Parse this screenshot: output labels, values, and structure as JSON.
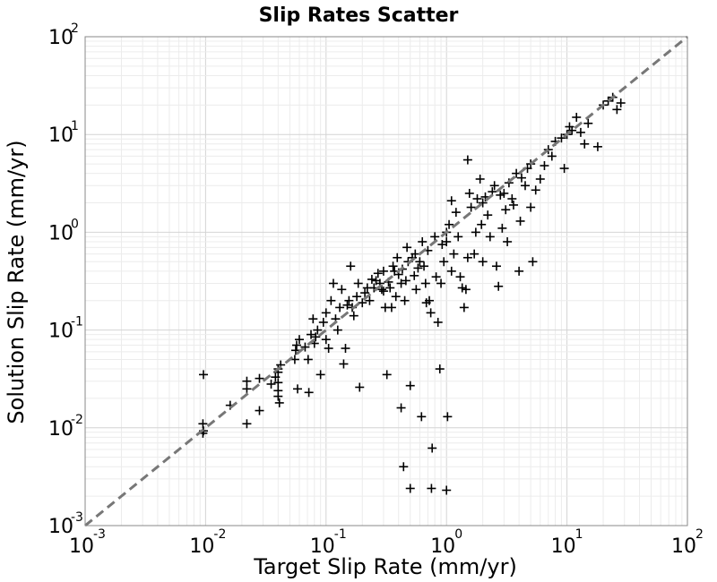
{
  "chart_data": {
    "type": "scatter",
    "title": "Slip Rates Scatter",
    "xlabel": "Target Slip Rate (mm/yr)",
    "ylabel": "Solution Slip Rate (mm/yr)",
    "xscale": "log",
    "yscale": "log",
    "xlim": [
      0.001,
      100
    ],
    "ylim": [
      0.001,
      100
    ],
    "grid": true,
    "marker": "plus",
    "reference_line": "y = x (dashed gray)",
    "x_ticks": [
      {
        "base": "10",
        "exp": "-3"
      },
      {
        "base": "10",
        "exp": "-2"
      },
      {
        "base": "10",
        "exp": "-1"
      },
      {
        "base": "10",
        "exp": "0"
      },
      {
        "base": "10",
        "exp": "1"
      },
      {
        "base": "10",
        "exp": "2"
      }
    ],
    "y_ticks": [
      {
        "base": "10",
        "exp": "-3"
      },
      {
        "base": "10",
        "exp": "-2"
      },
      {
        "base": "10",
        "exp": "-1"
      },
      {
        "base": "10",
        "exp": "0"
      },
      {
        "base": "10",
        "exp": "1"
      },
      {
        "base": "10",
        "exp": "2"
      }
    ],
    "points": [
      [
        0.0096,
        0.035
      ],
      [
        0.0095,
        0.011
      ],
      [
        0.0095,
        0.0088
      ],
      [
        0.0096,
        0.0093
      ],
      [
        0.016,
        0.017
      ],
      [
        0.022,
        0.011
      ],
      [
        0.022,
        0.025
      ],
      [
        0.022,
        0.03
      ],
      [
        0.028,
        0.015
      ],
      [
        0.028,
        0.032
      ],
      [
        0.035,
        0.028
      ],
      [
        0.038,
        0.033
      ],
      [
        0.04,
        0.04
      ],
      [
        0.04,
        0.037
      ],
      [
        0.04,
        0.029
      ],
      [
        0.04,
        0.024
      ],
      [
        0.04,
        0.021
      ],
      [
        0.041,
        0.018
      ],
      [
        0.042,
        0.044
      ],
      [
        0.055,
        0.05
      ],
      [
        0.056,
        0.062
      ],
      [
        0.057,
        0.07
      ],
      [
        0.058,
        0.025
      ],
      [
        0.06,
        0.08
      ],
      [
        0.067,
        0.067
      ],
      [
        0.071,
        0.05
      ],
      [
        0.072,
        0.023
      ],
      [
        0.075,
        0.09
      ],
      [
        0.078,
        0.13
      ],
      [
        0.08,
        0.073
      ],
      [
        0.082,
        0.085
      ],
      [
        0.085,
        0.1
      ],
      [
        0.09,
        0.035
      ],
      [
        0.095,
        0.12
      ],
      [
        0.1,
        0.15
      ],
      [
        0.1,
        0.08
      ],
      [
        0.105,
        0.065
      ],
      [
        0.11,
        0.2
      ],
      [
        0.115,
        0.3
      ],
      [
        0.12,
        0.13
      ],
      [
        0.125,
        0.1
      ],
      [
        0.13,
        0.17
      ],
      [
        0.135,
        0.26
      ],
      [
        0.14,
        0.045
      ],
      [
        0.145,
        0.065
      ],
      [
        0.15,
        0.18
      ],
      [
        0.155,
        0.2
      ],
      [
        0.16,
        0.45
      ],
      [
        0.165,
        0.17
      ],
      [
        0.17,
        0.14
      ],
      [
        0.18,
        0.22
      ],
      [
        0.185,
        0.3
      ],
      [
        0.19,
        0.026
      ],
      [
        0.2,
        0.19
      ],
      [
        0.21,
        0.24
      ],
      [
        0.22,
        0.27
      ],
      [
        0.23,
        0.2
      ],
      [
        0.24,
        0.33
      ],
      [
        0.25,
        0.27
      ],
      [
        0.26,
        0.32
      ],
      [
        0.27,
        0.38
      ],
      [
        0.28,
        0.3
      ],
      [
        0.29,
        0.26
      ],
      [
        0.3,
        0.25
      ],
      [
        0.3,
        0.4
      ],
      [
        0.31,
        0.17
      ],
      [
        0.32,
        0.035
      ],
      [
        0.33,
        0.31
      ],
      [
        0.34,
        0.27
      ],
      [
        0.35,
        0.17
      ],
      [
        0.36,
        0.45
      ],
      [
        0.37,
        0.4
      ],
      [
        0.38,
        0.22
      ],
      [
        0.39,
        0.55
      ],
      [
        0.4,
        0.37
      ],
      [
        0.42,
        0.3
      ],
      [
        0.42,
        0.016
      ],
      [
        0.43,
        0.42
      ],
      [
        0.44,
        0.004
      ],
      [
        0.45,
        0.2
      ],
      [
        0.46,
        0.32
      ],
      [
        0.47,
        0.7
      ],
      [
        0.48,
        0.5
      ],
      [
        0.5,
        0.0024
      ],
      [
        0.5,
        0.027
      ],
      [
        0.52,
        0.55
      ],
      [
        0.54,
        0.36
      ],
      [
        0.55,
        0.6
      ],
      [
        0.56,
        0.26
      ],
      [
        0.58,
        0.43
      ],
      [
        0.6,
        0.5
      ],
      [
        0.62,
        0.013
      ],
      [
        0.63,
        0.8
      ],
      [
        0.65,
        0.45
      ],
      [
        0.67,
        0.3
      ],
      [
        0.68,
        0.19
      ],
      [
        0.7,
        0.65
      ],
      [
        0.72,
        0.2
      ],
      [
        0.74,
        0.15
      ],
      [
        0.75,
        0.0024
      ],
      [
        0.76,
        0.0062
      ],
      [
        0.8,
        0.9
      ],
      [
        0.82,
        0.35
      ],
      [
        0.85,
        0.12
      ],
      [
        0.88,
        0.04
      ],
      [
        0.9,
        0.3
      ],
      [
        0.92,
        0.75
      ],
      [
        0.95,
        0.5
      ],
      [
        1.0,
        1.0
      ],
      [
        1.0,
        0.8
      ],
      [
        1.0,
        0.0023
      ],
      [
        1.02,
        0.013
      ],
      [
        1.05,
        1.2
      ],
      [
        1.1,
        0.4
      ],
      [
        1.1,
        2.1
      ],
      [
        1.15,
        0.6
      ],
      [
        1.2,
        1.6
      ],
      [
        1.25,
        0.9
      ],
      [
        1.3,
        0.35
      ],
      [
        1.35,
        0.27
      ],
      [
        1.4,
        0.17
      ],
      [
        1.45,
        0.26
      ],
      [
        1.5,
        0.55
      ],
      [
        1.5,
        5.5
      ],
      [
        1.55,
        2.5
      ],
      [
        1.6,
        1.8
      ],
      [
        1.7,
        0.6
      ],
      [
        1.75,
        1.0
      ],
      [
        1.8,
        2.2
      ],
      [
        1.9,
        3.5
      ],
      [
        1.95,
        1.2
      ],
      [
        2.0,
        0.5
      ],
      [
        2.0,
        2.0
      ],
      [
        2.1,
        2.3
      ],
      [
        2.2,
        1.5
      ],
      [
        2.3,
        0.9
      ],
      [
        2.4,
        2.6
      ],
      [
        2.5,
        3.0
      ],
      [
        2.6,
        0.45
      ],
      [
        2.7,
        0.28
      ],
      [
        2.8,
        2.4
      ],
      [
        2.9,
        1.1
      ],
      [
        3.0,
        2.5
      ],
      [
        3.1,
        1.7
      ],
      [
        3.2,
        0.8
      ],
      [
        3.3,
        3.2
      ],
      [
        3.5,
        2.2
      ],
      [
        3.6,
        1.9
      ],
      [
        3.8,
        4.0
      ],
      [
        4.0,
        0.4
      ],
      [
        4.1,
        1.3
      ],
      [
        4.2,
        3.6
      ],
      [
        4.5,
        3.0
      ],
      [
        4.7,
        4.5
      ],
      [
        5.0,
        5.0
      ],
      [
        5.0,
        1.8
      ],
      [
        5.2,
        0.5
      ],
      [
        5.5,
        2.7
      ],
      [
        6.0,
        3.5
      ],
      [
        6.5,
        4.8
      ],
      [
        7.0,
        7.0
      ],
      [
        7.5,
        6.0
      ],
      [
        8.0,
        8.5
      ],
      [
        9.0,
        9.2
      ],
      [
        9.5,
        4.5
      ],
      [
        10.0,
        10.0
      ],
      [
        10.5,
        12.0
      ],
      [
        11.0,
        11.0
      ],
      [
        12.0,
        15.0
      ],
      [
        13.0,
        10.5
      ],
      [
        14.0,
        8.0
      ],
      [
        15.0,
        13.0
      ],
      [
        18.0,
        7.5
      ],
      [
        20.0,
        20.0
      ],
      [
        22.0,
        22.0
      ],
      [
        24.0,
        24.0
      ],
      [
        26.0,
        18.0
      ],
      [
        28.0,
        21.0
      ]
    ]
  }
}
